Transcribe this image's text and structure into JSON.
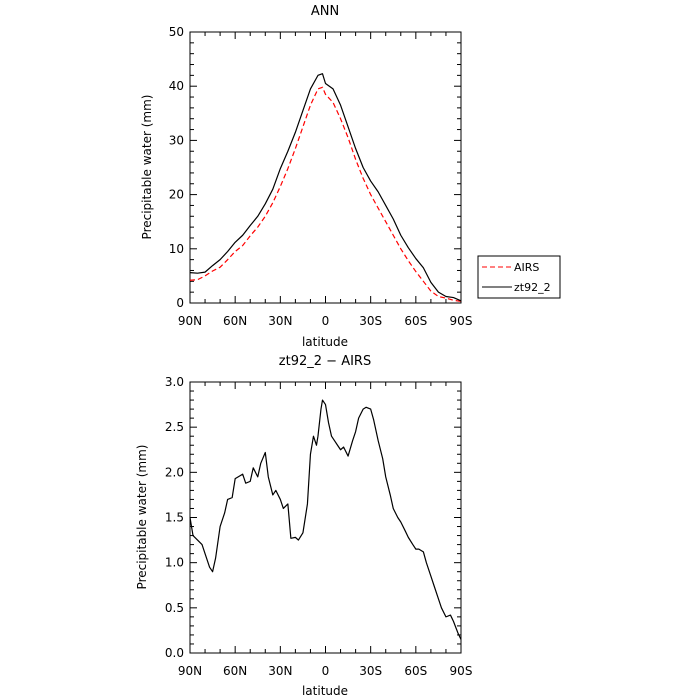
{
  "chart_data": [
    {
      "type": "line",
      "title": "ANN",
      "xlabel": "latitude",
      "ylabel": "Precipitable water  (mm)",
      "xlim": [
        90,
        -90
      ],
      "ylim": [
        0,
        50
      ],
      "x_ticks": [
        90,
        60,
        30,
        0,
        -30,
        -60,
        -90
      ],
      "x_tick_labels": [
        "90N",
        "60N",
        "30N",
        "0",
        "30S",
        "60S",
        "90S"
      ],
      "y_ticks": [
        0,
        10,
        20,
        30,
        40,
        50
      ],
      "y_tick_labels": [
        "0",
        "10",
        "20",
        "30",
        "40",
        "50"
      ],
      "legend_position": "right-outside",
      "series": [
        {
          "name": "AIRS",
          "color": "#ff0000",
          "style": "dashed",
          "x": [
            90,
            85,
            80,
            75,
            70,
            65,
            60,
            55,
            50,
            45,
            40,
            35,
            30,
            25,
            20,
            15,
            10,
            5,
            2,
            0,
            -5,
            -10,
            -15,
            -20,
            -25,
            -30,
            -35,
            -40,
            -45,
            -50,
            -55,
            -60,
            -65,
            -70,
            -75,
            -80,
            -85,
            -90
          ],
          "values": [
            4.2,
            4.3,
            5.0,
            5.9,
            6.6,
            8.0,
            9.5,
            10.6,
            12.4,
            14.0,
            16.0,
            18.5,
            21.5,
            24.8,
            28.5,
            32.5,
            36.5,
            39.5,
            39.8,
            38.5,
            37.0,
            34.0,
            30.5,
            26.5,
            23.0,
            20.0,
            17.5,
            15.0,
            12.5,
            10.0,
            7.8,
            5.8,
            4.0,
            2.2,
            1.2,
            0.9,
            0.5,
            0.3
          ]
        },
        {
          "name": "zt92_2",
          "color": "#000000",
          "style": "solid",
          "x": [
            90,
            85,
            80,
            75,
            70,
            65,
            60,
            55,
            50,
            45,
            40,
            35,
            30,
            25,
            20,
            15,
            10,
            5,
            2,
            0,
            -5,
            -10,
            -15,
            -20,
            -25,
            -30,
            -35,
            -40,
            -45,
            -50,
            -55,
            -60,
            -65,
            -70,
            -75,
            -80,
            -85,
            -90
          ],
          "values": [
            5.6,
            5.5,
            5.7,
            6.9,
            8.0,
            9.5,
            11.2,
            12.5,
            14.3,
            16.0,
            18.3,
            21.0,
            24.8,
            28.0,
            31.5,
            35.5,
            39.5,
            42.0,
            42.3,
            40.5,
            39.5,
            36.5,
            32.5,
            28.5,
            25.0,
            22.5,
            20.5,
            18.0,
            15.5,
            12.5,
            10.2,
            8.2,
            6.5,
            3.8,
            2.0,
            1.2,
            1.0,
            0.4
          ]
        }
      ]
    },
    {
      "type": "line",
      "title": "zt92_2  −  AIRS",
      "xlabel": "latitude",
      "ylabel": "Precipitable water  (mm)",
      "xlim": [
        90,
        -90
      ],
      "ylim": [
        0.0,
        3.0
      ],
      "x_ticks": [
        90,
        60,
        30,
        0,
        -30,
        -60,
        -90
      ],
      "x_tick_labels": [
        "90N",
        "60N",
        "30N",
        "0",
        "30S",
        "60S",
        "90S"
      ],
      "y_ticks": [
        0.0,
        0.5,
        1.0,
        1.5,
        2.0,
        2.5,
        3.0
      ],
      "y_tick_labels": [
        "0.0",
        "0.5",
        "1.0",
        "1.5",
        "2.0",
        "2.5",
        "3.0"
      ],
      "series": [
        {
          "color": "#000000",
          "style": "solid",
          "x": [
            90,
            88,
            85,
            82,
            80,
            77,
            75,
            73,
            70,
            67,
            65,
            62,
            60,
            58,
            55,
            53,
            50,
            48,
            45,
            43,
            40,
            38,
            35,
            33,
            30,
            28,
            25,
            23,
            20,
            18,
            15,
            12,
            10,
            8,
            6,
            5,
            3,
            2,
            0,
            -2,
            -4,
            -6,
            -8,
            -10,
            -12,
            -15,
            -18,
            -20,
            -22,
            -25,
            -27,
            -30,
            -32,
            -35,
            -38,
            -40,
            -43,
            -45,
            -48,
            -50,
            -53,
            -55,
            -58,
            -60,
            -62,
            -65,
            -67,
            -70,
            -72,
            -75,
            -77,
            -80,
            -83,
            -85,
            -88,
            -90
          ],
          "values": [
            1.5,
            1.3,
            1.25,
            1.2,
            1.1,
            0.95,
            0.9,
            1.05,
            1.4,
            1.55,
            1.7,
            1.72,
            1.93,
            1.95,
            1.98,
            1.88,
            1.9,
            2.05,
            1.95,
            2.1,
            2.22,
            1.95,
            1.75,
            1.8,
            1.7,
            1.6,
            1.65,
            1.27,
            1.28,
            1.25,
            1.33,
            1.65,
            2.2,
            2.4,
            2.3,
            2.4,
            2.7,
            2.8,
            2.75,
            2.55,
            2.4,
            2.35,
            2.3,
            2.25,
            2.28,
            2.18,
            2.35,
            2.45,
            2.6,
            2.7,
            2.72,
            2.7,
            2.58,
            2.35,
            2.15,
            1.95,
            1.75,
            1.6,
            1.5,
            1.45,
            1.35,
            1.28,
            1.2,
            1.15,
            1.15,
            1.12,
            1.0,
            0.85,
            0.75,
            0.6,
            0.5,
            0.4,
            0.42,
            0.35,
            0.22,
            0.15
          ]
        }
      ]
    }
  ]
}
